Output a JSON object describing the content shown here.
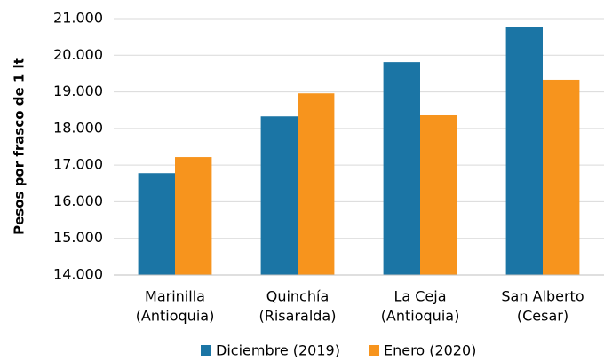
{
  "chart_data": {
    "type": "bar",
    "y_label": "Pesos por frasco de 1 lt",
    "categories": [
      [
        "Marinilla",
        "(Antioquia)"
      ],
      [
        "Quinchía",
        "(Risaralda)"
      ],
      [
        "La Ceja",
        "(Antioquia)"
      ],
      [
        "San Alberto",
        "(Cesar)"
      ]
    ],
    "series": [
      {
        "name": "Diciembre (2019)",
        "color": "#1b75a5",
        "values": [
          16780,
          18330,
          19810,
          20760
        ]
      },
      {
        "name": "Enero (2020)",
        "color": "#f7941d",
        "values": [
          17220,
          18960,
          18360,
          19330
        ]
      }
    ],
    "ylim": [
      14000,
      21000
    ],
    "yticks": [
      {
        "value": 14000,
        "label": "14.000"
      },
      {
        "value": 15000,
        "label": "15.000"
      },
      {
        "value": 16000,
        "label": "16.000"
      },
      {
        "value": 17000,
        "label": "17.000"
      },
      {
        "value": 18000,
        "label": "18.000"
      },
      {
        "value": 19000,
        "label": "19.000"
      },
      {
        "value": 20000,
        "label": "20.000"
      },
      {
        "value": 21000,
        "label": "21.000"
      }
    ],
    "grid": true,
    "legend": "bottom"
  }
}
